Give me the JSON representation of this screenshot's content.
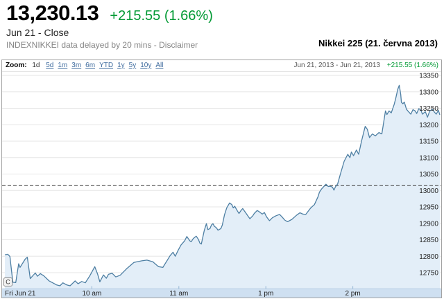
{
  "header": {
    "price": "13,230.13",
    "change": "+215.55 (1.66%)",
    "date_status": "Jun 21 - Close",
    "source_note": "INDEXNIKKEI data delayed by 20 mins -",
    "disclaimer_label": "Disclaimer",
    "right_title": "Nikkei 225 (21. června 2013)"
  },
  "toolbar": {
    "zoom_label": "Zoom:",
    "selected_range": "1d",
    "ranges": [
      "5d",
      "1m",
      "3m",
      "6m",
      "YTD",
      "1y",
      "5y",
      "10y",
      "All"
    ],
    "date_range": "Jun 21, 2013 - Jun 21, 2013",
    "range_change": "+215.55 (1.66%)"
  },
  "colors": {
    "line": "#4e7fa3",
    "area_fill": "#e3eef8",
    "grid": "#e6e6e6",
    "strip": "#cfe0f1",
    "strip_border": "#b0c9e2",
    "tick": "#93b4d2",
    "prev_close_line": "#3c3c3c",
    "green": "#009933",
    "link": "#3e6b9e"
  },
  "chart_data": {
    "type": "line",
    "title": "Nikkei 225 intraday, Jun 21 2013 (1d zoom)",
    "close": 13230.13,
    "change": 215.55,
    "change_pct": 1.66,
    "previous_close": 13014.58,
    "open_marker": "C",
    "y_ticks": [
      13350,
      13300,
      13250,
      13200,
      13150,
      13100,
      13050,
      13000,
      12950,
      12900,
      12850,
      12800,
      12750
    ],
    "ylim": [
      12700,
      13360
    ],
    "x_axis_labels": [
      "Fri Jun 21",
      "10 am",
      "11 am",
      "1 pm",
      "2 pm"
    ],
    "x_label_minutes": [
      0,
      60,
      120,
      180,
      240
    ],
    "x_unit": "trading minutes since 09:00 open (11:30-12:30 lunch break omitted)",
    "x_total_minutes": 300,
    "grid": true,
    "legend": false,
    "points": [
      [
        0,
        12804
      ],
      [
        2,
        12806
      ],
      [
        3.5,
        12799
      ],
      [
        5.5,
        12721
      ],
      [
        7.5,
        12720
      ],
      [
        9.5,
        12777
      ],
      [
        10.5,
        12766
      ],
      [
        14,
        12791
      ],
      [
        15.5,
        12797
      ],
      [
        17.5,
        12732
      ],
      [
        21,
        12749
      ],
      [
        22.5,
        12739
      ],
      [
        24.5,
        12747
      ],
      [
        27,
        12740
      ],
      [
        30.5,
        12725
      ],
      [
        33,
        12719
      ],
      [
        35.5,
        12713
      ],
      [
        38,
        12710
      ],
      [
        40,
        12719
      ],
      [
        42.5,
        12713
      ],
      [
        45,
        12710
      ],
      [
        48.5,
        12725
      ],
      [
        50.5,
        12716
      ],
      [
        53,
        12723
      ],
      [
        55.5,
        12719
      ],
      [
        58.5,
        12740
      ],
      [
        62,
        12768
      ],
      [
        64,
        12745
      ],
      [
        65.5,
        12722
      ],
      [
        68,
        12743
      ],
      [
        70,
        12733
      ],
      [
        71.5,
        12745
      ],
      [
        74,
        12748
      ],
      [
        76.5,
        12737
      ],
      [
        79.5,
        12742
      ],
      [
        84,
        12762
      ],
      [
        89,
        12781
      ],
      [
        94.5,
        12786
      ],
      [
        98,
        12788
      ],
      [
        102,
        12783
      ],
      [
        106,
        12768
      ],
      [
        109,
        12766
      ],
      [
        114,
        12802
      ],
      [
        116,
        12812
      ],
      [
        117.5,
        12800
      ],
      [
        119.5,
        12818
      ],
      [
        121.5,
        12834
      ],
      [
        124,
        12847
      ],
      [
        125.5,
        12860
      ],
      [
        127.5,
        12847
      ],
      [
        128.5,
        12844
      ],
      [
        130,
        12854
      ],
      [
        132,
        12861
      ],
      [
        133.5,
        12851
      ],
      [
        134.5,
        12840
      ],
      [
        135.5,
        12837
      ],
      [
        137.5,
        12878
      ],
      [
        139,
        12899
      ],
      [
        140,
        12881
      ],
      [
        141.5,
        12884
      ],
      [
        142.5,
        12895
      ],
      [
        143.5,
        12899
      ],
      [
        144.5,
        12891
      ],
      [
        146,
        12886
      ],
      [
        147,
        12879
      ],
      [
        149,
        12884
      ],
      [
        150,
        12895
      ],
      [
        151.5,
        12926
      ],
      [
        153,
        12947
      ],
      [
        155,
        12962
      ],
      [
        156.5,
        12957
      ],
      [
        157.5,
        12947
      ],
      [
        158.5,
        12952
      ],
      [
        160.5,
        12937
      ],
      [
        161.5,
        12930
      ],
      [
        163,
        12940
      ],
      [
        164,
        12945
      ],
      [
        166,
        12933
      ],
      [
        167.5,
        12923
      ],
      [
        169,
        12914
      ],
      [
        171,
        12923
      ],
      [
        172,
        12930
      ],
      [
        174,
        12939
      ],
      [
        175.5,
        12935
      ],
      [
        177.5,
        12928
      ],
      [
        179,
        12933
      ],
      [
        180.5,
        12920
      ],
      [
        182.5,
        12908
      ],
      [
        184.5,
        12917
      ],
      [
        187,
        12923
      ],
      [
        189.5,
        12927
      ],
      [
        191.5,
        12918
      ],
      [
        193,
        12910
      ],
      [
        195,
        12905
      ],
      [
        198,
        12912
      ],
      [
        201,
        12924
      ],
      [
        203.5,
        12932
      ],
      [
        205.5,
        12928
      ],
      [
        207.5,
        12927
      ],
      [
        211,
        12947
      ],
      [
        213.5,
        12957
      ],
      [
        216,
        12981
      ],
      [
        217,
        12995
      ],
      [
        218.5,
        13005
      ],
      [
        220,
        13012
      ],
      [
        221.5,
        13019
      ],
      [
        223,
        13012
      ],
      [
        224.5,
        13013
      ],
      [
        226,
        13010
      ],
      [
        227,
        13001
      ],
      [
        228,
        13011
      ],
      [
        229.5,
        13020
      ],
      [
        230.5,
        13035
      ],
      [
        231.5,
        13051
      ],
      [
        234,
        13089
      ],
      [
        236.5,
        13110
      ],
      [
        238,
        13100
      ],
      [
        239,
        13117
      ],
      [
        240.5,
        13106
      ],
      [
        242.5,
        13123
      ],
      [
        244,
        13110
      ],
      [
        246,
        13150
      ],
      [
        248.5,
        13195
      ],
      [
        250,
        13186
      ],
      [
        251.5,
        13161
      ],
      [
        253.5,
        13172
      ],
      [
        255.5,
        13166
      ],
      [
        258,
        13176
      ],
      [
        260,
        13172
      ],
      [
        261,
        13200
      ],
      [
        262.5,
        13242
      ],
      [
        263.5,
        13231
      ],
      [
        265,
        13242
      ],
      [
        266.5,
        13236
      ],
      [
        268.5,
        13262
      ],
      [
        269.5,
        13279
      ],
      [
        271,
        13308
      ],
      [
        272,
        13320
      ],
      [
        273,
        13293
      ],
      [
        273.5,
        13268
      ],
      [
        274.5,
        13264
      ],
      [
        275.5,
        13269
      ],
      [
        277,
        13247
      ],
      [
        278.5,
        13239
      ],
      [
        280,
        13232
      ],
      [
        281.5,
        13246
      ],
      [
        283,
        13242
      ],
      [
        284,
        13234
      ],
      [
        285.5,
        13249
      ],
      [
        287,
        13244
      ],
      [
        288,
        13232
      ],
      [
        290,
        13240
      ],
      [
        291.5,
        13223
      ],
      [
        293,
        13242
      ],
      [
        295,
        13247
      ],
      [
        296,
        13240
      ],
      [
        297.5,
        13232
      ],
      [
        299,
        13244
      ],
      [
        300,
        13230
      ]
    ]
  }
}
